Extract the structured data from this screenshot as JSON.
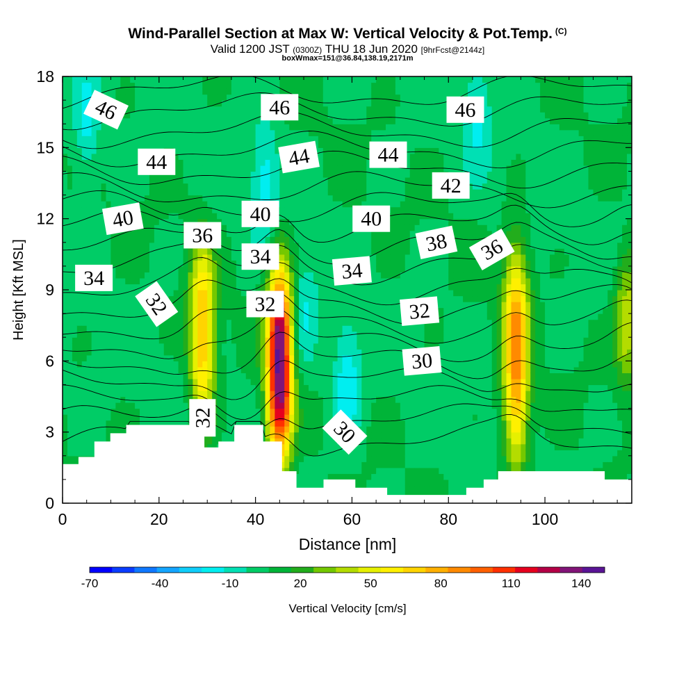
{
  "title": {
    "main": "Wind-Parallel Section at Max W: Vertical Velocity & Pot.Temp.",
    "copyright": "(C)",
    "valid": "Valid 1200 JST",
    "utc": "(0300Z)",
    "date": "THU 18 Jun 2020",
    "forecast": "[9hrFcst@2144z]",
    "box": "boxWmax=151@36.84,138.19,2171m"
  },
  "chart_data": {
    "type": "heatmap",
    "xlabel": "Distance [nm]",
    "ylabel": "Height [Kft MSL]",
    "xlim": [
      0,
      118
    ],
    "ylim": [
      0,
      18
    ],
    "x_ticks": [
      "0",
      "20",
      "40",
      "60",
      "80",
      "100"
    ],
    "y_ticks": [
      "0",
      "3",
      "6",
      "9",
      "12",
      "15",
      "18"
    ],
    "colorbar": {
      "label": "Vertical Velocity [cm/s]",
      "tick_labels": [
        "-70",
        "-40",
        "-10",
        "20",
        "50",
        "80",
        "110",
        "140"
      ],
      "levels": [
        -70,
        -60,
        -50,
        -40,
        -30,
        -20,
        -10,
        0,
        10,
        20,
        30,
        40,
        50,
        60,
        70,
        80,
        90,
        100,
        110,
        120,
        130,
        140,
        150
      ],
      "colors": [
        "#0000ff",
        "#0a3cff",
        "#0f78ff",
        "#14a5ff",
        "#10cdfa",
        "#00eef0",
        "#00e0b4",
        "#00cc66",
        "#00b438",
        "#22ad1c",
        "#74c800",
        "#b4dc00",
        "#e6f000",
        "#fff000",
        "#ffd400",
        "#ffb000",
        "#ff8a00",
        "#ff6000",
        "#ff3000",
        "#e6001e",
        "#b40046",
        "#821478",
        "#5a1496"
      ]
    },
    "updrafts": [
      {
        "x": 29,
        "zmin": 3.2,
        "zmax": 11.0,
        "peak": 70
      },
      {
        "x": 45,
        "zmin": 1.8,
        "zmax": 10.0,
        "peak": 145
      },
      {
        "x": 94,
        "zmin": 1.5,
        "zmax": 10.8,
        "peak": 85
      },
      {
        "x": 117,
        "zmin": 5.0,
        "zmax": 10.5,
        "peak": 40
      }
    ],
    "downdrafts": [
      {
        "x": 5,
        "z": 16.0,
        "value": -15
      },
      {
        "x": 59,
        "z": 5.0,
        "value": -20
      },
      {
        "x": 42,
        "z": 13.5,
        "value": -15
      },
      {
        "x": 50,
        "z": 8.0,
        "value": -10
      },
      {
        "x": 86,
        "z": 16.5,
        "value": -10
      }
    ],
    "terrain": [
      {
        "x": 0,
        "h": 1.65
      },
      {
        "x": 3.3,
        "h": 1.95
      },
      {
        "x": 6.6,
        "h": 2.6
      },
      {
        "x": 9.9,
        "h": 2.95
      },
      {
        "x": 13.2,
        "h": 3.3
      },
      {
        "x": 26.4,
        "h": 3.0
      },
      {
        "x": 29.4,
        "h": 2.35
      },
      {
        "x": 32.3,
        "h": 2.6
      },
      {
        "x": 35.6,
        "h": 3.3
      },
      {
        "x": 41.6,
        "h": 2.6
      },
      {
        "x": 45.5,
        "h": 1.35
      },
      {
        "x": 48.5,
        "h": 0.65
      },
      {
        "x": 54.1,
        "h": 1.0
      },
      {
        "x": 60.7,
        "h": 0.65
      },
      {
        "x": 67.3,
        "h": 0.35
      },
      {
        "x": 83.7,
        "h": 0.65
      },
      {
        "x": 87.3,
        "h": 1.0
      },
      {
        "x": 90.3,
        "h": 1.35
      },
      {
        "x": 112.4,
        "h": 1.0
      },
      {
        "x": 118,
        "h": 1.0
      }
    ],
    "theta_contours": {
      "base_value": 28,
      "interval": 1,
      "count": 19
    },
    "contour_labels": [
      {
        "text": "46",
        "x": 9,
        "z": 16.6,
        "rot": 25
      },
      {
        "text": "46",
        "x": 45,
        "z": 16.7,
        "rot": 0
      },
      {
        "text": "46",
        "x": 83.5,
        "z": 16.6,
        "rot": 0
      },
      {
        "text": "44",
        "x": 19.5,
        "z": 14.4,
        "rot": 0
      },
      {
        "text": "44",
        "x": 49,
        "z": 14.6,
        "rot": -10
      },
      {
        "text": "44",
        "x": 67.5,
        "z": 14.7,
        "rot": 0
      },
      {
        "text": "42",
        "x": 80.5,
        "z": 13.4,
        "rot": 0
      },
      {
        "text": "40",
        "x": 12.5,
        "z": 12.0,
        "rot": -10
      },
      {
        "text": "40",
        "x": 41,
        "z": 12.2,
        "rot": 0
      },
      {
        "text": "40",
        "x": 64,
        "z": 12.0,
        "rot": 0
      },
      {
        "text": "38",
        "x": 77.5,
        "z": 11.0,
        "rot": -12
      },
      {
        "text": "36",
        "x": 29,
        "z": 11.3,
        "rot": 0
      },
      {
        "text": "36",
        "x": 89,
        "z": 10.7,
        "rot": -30
      },
      {
        "text": "34",
        "x": 6.5,
        "z": 9.5,
        "rot": 0
      },
      {
        "text": "34",
        "x": 41,
        "z": 10.4,
        "rot": 0
      },
      {
        "text": "34",
        "x": 60,
        "z": 9.8,
        "rot": -5
      },
      {
        "text": "32",
        "x": 19.5,
        "z": 8.4,
        "rot": 55
      },
      {
        "text": "32",
        "x": 42,
        "z": 8.4,
        "rot": 0
      },
      {
        "text": "32",
        "x": 74,
        "z": 8.1,
        "rot": -5
      },
      {
        "text": "32",
        "x": 29,
        "z": 3.6,
        "rot": -90
      },
      {
        "text": "30",
        "x": 74.5,
        "z": 6.0,
        "rot": -5
      },
      {
        "text": "30",
        "x": 58.5,
        "z": 3.0,
        "rot": 45
      }
    ]
  }
}
